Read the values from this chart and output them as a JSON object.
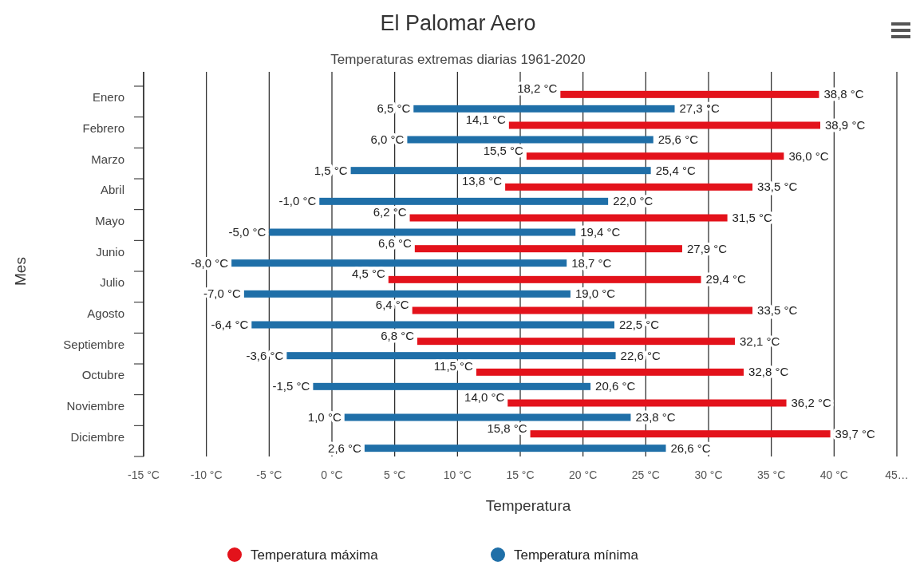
{
  "chart_data": {
    "type": "bar",
    "orientation": "horizontal",
    "title": "El Palomar Aero",
    "subtitle": "Temperaturas extremas diarias 1961-2020",
    "xlabel": "Temperatura",
    "ylabel": "Mes",
    "categories": [
      "Enero",
      "Febrero",
      "Marzo",
      "Abril",
      "Mayo",
      "Junio",
      "Julio",
      "Agosto",
      "Septiembre",
      "Octubre",
      "Noviembre",
      "Diciembre"
    ],
    "series": [
      {
        "name": "Temperatura máxima",
        "color": "#e3121b",
        "base": [
          18.2,
          14.1,
          15.5,
          13.8,
          6.2,
          6.6,
          4.5,
          6.4,
          6.8,
          11.5,
          14.0,
          15.8
        ],
        "values": [
          20.6,
          24.8,
          20.5,
          19.7,
          25.3,
          21.3,
          24.9,
          27.1,
          25.3,
          21.3,
          22.2,
          23.9
        ],
        "value_labels": [
          "38,8 °C",
          "38,9 °C",
          "36,0 °C",
          "33,5 °C",
          "31,5 °C",
          "27,9 °C",
          "29,4 °C",
          "33,5 °C",
          "32,1 °C",
          "32,8 °C",
          "36,2 °C",
          "39,7 °C"
        ]
      },
      {
        "name": "Temperatura mínima",
        "color": "#1f6fa8",
        "base": [
          6.5,
          6.0,
          1.5,
          -1.0,
          -5.0,
          -8.0,
          -7.0,
          -6.4,
          -3.6,
          -1.5,
          1.0,
          2.6
        ],
        "values": [
          20.8,
          19.6,
          23.9,
          23.0,
          24.4,
          26.7,
          26.0,
          28.9,
          26.2,
          22.1,
          22.8,
          24.0
        ],
        "value_labels": [
          "27,3 °C",
          "25,6 °C",
          "25,4 °C",
          "22,0 °C",
          "19,4 °C",
          "18,7 °C",
          "19,0 °C",
          "22,5 °C",
          "22,6 °C",
          "20,6 °C",
          "23,8 °C",
          "26,6 °C"
        ]
      }
    ],
    "annotations": [
      {
        "text": "18,2 °C",
        "x": 18.2,
        "y": "Enero"
      },
      {
        "text": "14,1 °C",
        "x": 14.1,
        "y": "Febrero"
      },
      {
        "text": "15,5 °C",
        "x": 15.5,
        "y": "Marzo"
      },
      {
        "text": "13,8 °C",
        "x": 13.8,
        "y": "Abril"
      },
      {
        "text": "6,2 °C",
        "x": 6.2,
        "y": "Mayo"
      },
      {
        "text": "6,6 °C",
        "x": 6.6,
        "y": "Junio"
      },
      {
        "text": "4,5 °C",
        "x": 4.5,
        "y": "Julio"
      },
      {
        "text": "6,4 °C",
        "x": 6.4,
        "y": "Agosto"
      },
      {
        "text": "6,8 °C",
        "x": 6.8,
        "y": "Septiembre"
      },
      {
        "text": "11,5 °C",
        "x": 11.5,
        "y": "Octubre"
      },
      {
        "text": "14,0 °C",
        "x": 14.0,
        "y": "Noviembre"
      },
      {
        "text": "15,8 °C",
        "x": 15.8,
        "y": "Diciembre"
      },
      {
        "text": "6,5 °C",
        "x": 6.5,
        "y": "Enero"
      },
      {
        "text": "6,0 °C",
        "x": 6.0,
        "y": "Febrero"
      },
      {
        "text": "1,5 °C",
        "x": 1.5,
        "y": "Marzo"
      },
      {
        "text": "-1,0 °C",
        "x": -1.0,
        "y": "Abril"
      },
      {
        "text": "-5,0 °C",
        "x": -5.0,
        "y": "Mayo"
      },
      {
        "text": "-8,0 °C",
        "x": -8.0,
        "y": "Junio"
      },
      {
        "text": "-7,0 °C",
        "x": -7.0,
        "y": "Julio"
      },
      {
        "text": "-6,4 °C",
        "x": -6.4,
        "y": "Agosto"
      },
      {
        "text": "-3,6 °C",
        "x": -3.6,
        "y": "Septiembre"
      },
      {
        "text": "-1,5 °C",
        "x": -1.5,
        "y": "Octubre"
      },
      {
        "text": "1,0 °C",
        "x": 1.0,
        "y": "Noviembre"
      },
      {
        "text": "2,6 °C",
        "x": 2.6,
        "y": "Diciembre"
      }
    ],
    "xlim": [
      -15,
      45
    ],
    "xticks": [
      {
        "value": -15,
        "label": "-15 °C"
      },
      {
        "value": -10,
        "label": "-10 °C"
      },
      {
        "value": -5,
        "label": "-5 °C"
      },
      {
        "value": 0,
        "label": "0 °C"
      },
      {
        "value": 5,
        "label": "5 °C"
      },
      {
        "value": 10,
        "label": "10 °C"
      },
      {
        "value": 15,
        "label": "15 °C"
      },
      {
        "value": 20,
        "label": "20 °C"
      },
      {
        "value": 25,
        "label": "25 °C"
      },
      {
        "value": 30,
        "label": "30 °C"
      },
      {
        "value": 35,
        "label": "35 °C"
      },
      {
        "value": 40,
        "label": "40 °C"
      },
      {
        "value": 45,
        "label": "45…"
      }
    ],
    "grid": "x",
    "legend": "bottom"
  }
}
